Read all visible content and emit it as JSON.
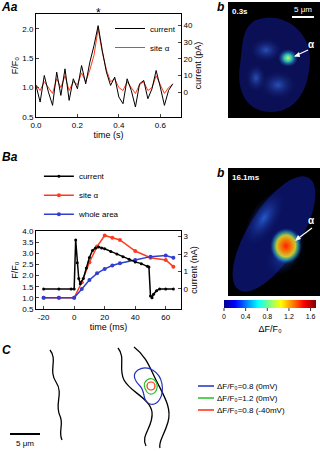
{
  "chart_data": [
    {
      "panel": "Aa",
      "type": "line",
      "xlabel": "time (s)",
      "ylabel": "F/F₀",
      "y2label": "current (pA)",
      "xlim": [
        0,
        0.7
      ],
      "xticks": [
        {
          "value": 0,
          "label": "0.0"
        },
        0.2,
        0.4,
        0.6
      ],
      "ylim": [
        0.5,
        2.25
      ],
      "yticks": [
        0.5,
        {
          "value": 1,
          "label": "1.0"
        },
        1.5,
        {
          "value": 2,
          "label": "2.0"
        }
      ],
      "y2lim": [
        -15,
        47
      ],
      "y2ticks": [
        0,
        10,
        20,
        30,
        40
      ],
      "grid": false,
      "legend": "upper right",
      "annotations": [
        {
          "text": "*",
          "x": 0.3,
          "y": 2.12
        }
      ],
      "series": [
        {
          "name": "current",
          "color": "#000000",
          "axis": "y2",
          "x": [
            0,
            0.02,
            0.04,
            0.06,
            0.08,
            0.1,
            0.12,
            0.14,
            0.16,
            0.18,
            0.2,
            0.22,
            0.24,
            0.26,
            0.28,
            0.3,
            0.32,
            0.34,
            0.36,
            0.38,
            0.4,
            0.42,
            0.44,
            0.46,
            0.48,
            0.5,
            0.52,
            0.54,
            0.56,
            0.58,
            0.6,
            0.62,
            0.64,
            0.66
          ],
          "values": [
            4,
            -6,
            10,
            0,
            -8,
            12,
            -2,
            14,
            -5,
            8,
            2,
            16,
            5,
            18,
            28,
            40,
            25,
            12,
            4,
            9,
            -3,
            -7,
            8,
            1,
            -9,
            5,
            7,
            -4,
            2,
            13,
            3,
            -8,
            1,
            5
          ]
        },
        {
          "name": "site α",
          "color": "#ff3b1f",
          "x": [
            0,
            0.02,
            0.04,
            0.06,
            0.08,
            0.1,
            0.12,
            0.14,
            0.16,
            0.18,
            0.2,
            0.22,
            0.24,
            0.26,
            0.28,
            0.3,
            0.32,
            0.34,
            0.36,
            0.38,
            0.4,
            0.42,
            0.44,
            0.46,
            0.48,
            0.5,
            0.52,
            0.54,
            0.56,
            0.58,
            0.6,
            0.62,
            0.64,
            0.66
          ],
          "values": [
            1.05,
            0.95,
            1.1,
            1.0,
            0.9,
            1.15,
            1.0,
            1.2,
            0.95,
            1.1,
            1.05,
            1.25,
            1.1,
            1.3,
            1.55,
            2.0,
            1.6,
            1.3,
            1.1,
            1.15,
            1.0,
            0.95,
            1.1,
            1.0,
            0.9,
            1.05,
            1.1,
            0.95,
            1.0,
            1.2,
            1.05,
            0.9,
            1.0,
            1.05
          ]
        }
      ]
    },
    {
      "panel": "Ba",
      "type": "line",
      "xlabel": "time (ms)",
      "ylabel": "F/F₀",
      "y2label": "current (nA)",
      "xlim": [
        -25,
        70
      ],
      "xticks": [
        -20,
        0,
        20,
        40,
        60
      ],
      "ylim": [
        0.5,
        4
      ],
      "yticks": [
        0.5,
        {
          "value": 1,
          "label": "1.0"
        },
        1.5,
        {
          "value": 2,
          "label": "2.0"
        },
        2.5,
        {
          "value": 3,
          "label": "3.0"
        },
        3.5,
        {
          "value": 4,
          "label": "4.0"
        }
      ],
      "y2lim": [
        -1.15,
        3.32
      ],
      "y2ticks": [
        0,
        1,
        2,
        3
      ],
      "grid": false,
      "legend": "top",
      "series": [
        {
          "name": "current",
          "color": "#000000",
          "axis": "y2",
          "marker": "circle",
          "x": [
            -20,
            -10,
            -2,
            0,
            1,
            2,
            3,
            4,
            6,
            8,
            10,
            12,
            14,
            16,
            18,
            20,
            24,
            28,
            32,
            36,
            40,
            44,
            48,
            49,
            50,
            51,
            52,
            54,
            56,
            60,
            65
          ],
          "values": [
            0,
            0,
            0,
            0,
            2.8,
            1.5,
            0.6,
            0.3,
            0.6,
            1.2,
            1.8,
            2.2,
            2.35,
            2.4,
            2.35,
            2.3,
            2.15,
            2.0,
            1.85,
            1.7,
            1.55,
            1.45,
            1.3,
            1.25,
            -0.4,
            -0.5,
            -0.3,
            -0.1,
            0,
            0,
            0
          ]
        },
        {
          "name": "site α",
          "color": "#ff3b1f",
          "marker": "circle",
          "x": [
            -20,
            -10,
            0,
            5,
            10,
            15,
            20,
            25,
            30,
            40,
            50,
            60,
            65
          ],
          "values": [
            1.0,
            1.0,
            1.0,
            1.7,
            2.6,
            3.3,
            3.8,
            3.7,
            3.6,
            3.1,
            2.8,
            2.7,
            2.4
          ]
        },
        {
          "name": "whole area",
          "color": "#2f3fd0",
          "marker": "circle",
          "x": [
            -20,
            -10,
            0,
            5,
            10,
            15,
            20,
            25,
            30,
            40,
            50,
            60,
            65
          ],
          "values": [
            1.0,
            1.0,
            1.0,
            1.4,
            1.8,
            2.1,
            2.3,
            2.45,
            2.55,
            2.7,
            2.85,
            2.9,
            2.8
          ]
        }
      ]
    }
  ],
  "images": [
    {
      "panel": "b",
      "time_label": "0.3s",
      "scale_label": "5 μm",
      "site_label": "α"
    },
    {
      "panel": "b",
      "time_label": "16.1ms",
      "site_label": "α"
    }
  ],
  "colorbar": {
    "label": "ΔF/F₀",
    "range": [
      0,
      1.7
    ],
    "ticks": [
      0,
      0.4,
      0.8,
      1.2,
      1.6
    ]
  },
  "contours": {
    "panel": "C",
    "scale_label": "5 μm",
    "series": [
      {
        "name": "ΔF/F₀=0.8 (0mV)",
        "color": "#2030c0"
      },
      {
        "name": "ΔF/F₀=1.2 (0mV)",
        "color": "#22c022"
      },
      {
        "name": "ΔF/F₀=0.8 (-40mV)",
        "color": "#ff2a10"
      }
    ]
  }
}
